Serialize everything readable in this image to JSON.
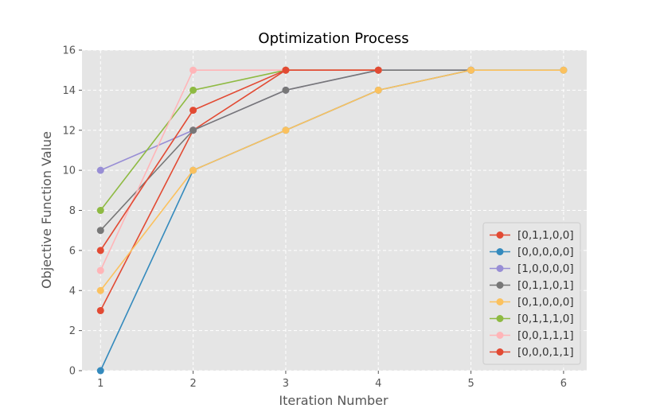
{
  "chart_data": {
    "type": "line",
    "title": "Optimization Process",
    "xlabel": "Iteration Number",
    "ylabel": "Objective Function Value",
    "xlim": [
      0.8,
      6.25
    ],
    "ylim": [
      0,
      16
    ],
    "xticks": [
      "1",
      "2",
      "3",
      "4",
      "5",
      "6"
    ],
    "yticks": [
      "0",
      "2",
      "4",
      "6",
      "8",
      "10",
      "12",
      "14",
      "16"
    ],
    "grid": true,
    "legend_position": "lower right",
    "series": [
      {
        "name": "[0,1,1,0,0]",
        "color": "#E24A33",
        "x": [
          1,
          2,
          3,
          4
        ],
        "values": [
          3,
          12,
          15,
          15
        ]
      },
      {
        "name": "[0,0,0,0,0]",
        "color": "#348ABD",
        "x": [
          1,
          2,
          3,
          4,
          5,
          6
        ],
        "values": [
          0,
          10,
          12,
          14,
          15,
          15
        ]
      },
      {
        "name": "[1,0,0,0,0]",
        "color": "#988ED5",
        "x": [
          1,
          2,
          3,
          4,
          5
        ],
        "values": [
          10,
          12,
          14,
          15,
          15
        ]
      },
      {
        "name": "[0,1,1,0,1]",
        "color": "#777777",
        "x": [
          1,
          2,
          3,
          4,
          5
        ],
        "values": [
          7,
          12,
          14,
          15,
          15
        ]
      },
      {
        "name": "[0,1,0,0,0]",
        "color": "#FBC15E",
        "x": [
          1,
          2,
          3,
          4,
          5,
          6
        ],
        "values": [
          4,
          10,
          12,
          14,
          15,
          15
        ]
      },
      {
        "name": "[0,1,1,1,0]",
        "color": "#8EBA42",
        "x": [
          1,
          2,
          3,
          4
        ],
        "values": [
          8,
          14,
          15,
          15
        ]
      },
      {
        "name": "[0,0,1,1,1]",
        "color": "#FFB5B8",
        "x": [
          1,
          2,
          3,
          4
        ],
        "values": [
          5,
          15,
          15,
          15
        ]
      },
      {
        "name": "[0,0,0,1,1]",
        "color": "#E24A33",
        "x": [
          1,
          2,
          3,
          4
        ],
        "values": [
          6,
          13,
          15,
          15
        ]
      }
    ]
  }
}
